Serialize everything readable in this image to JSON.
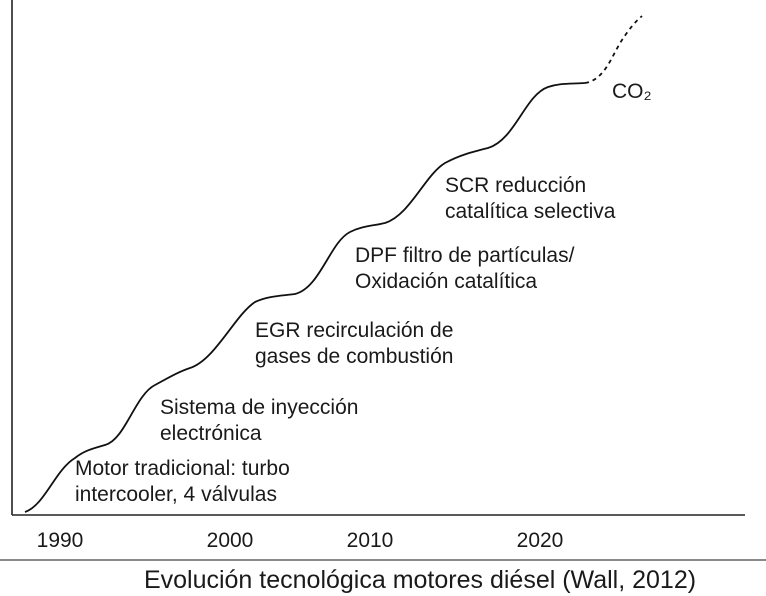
{
  "steps": [
    {
      "lines": [
        "Motor tradicional: turbo",
        "intercooler, 4 válvulas"
      ]
    },
    {
      "lines": [
        "Sistema de inyección",
        "electrónica"
      ]
    },
    {
      "lines": [
        "EGR recirculación de",
        "gases de combustión"
      ]
    },
    {
      "lines": [
        "DPF filtro de partículas/",
        "Oxidación catalítica"
      ]
    },
    {
      "lines": [
        "SCR reducción",
        "catalítica selectiva"
      ]
    },
    {
      "lines": [
        "CO₂"
      ]
    }
  ],
  "x_axis": {
    "labels": [
      "1990",
      "2000",
      "2010",
      "2020"
    ]
  },
  "caption": "Evolución tecnológica motores diésel (Wall, 2012)"
}
